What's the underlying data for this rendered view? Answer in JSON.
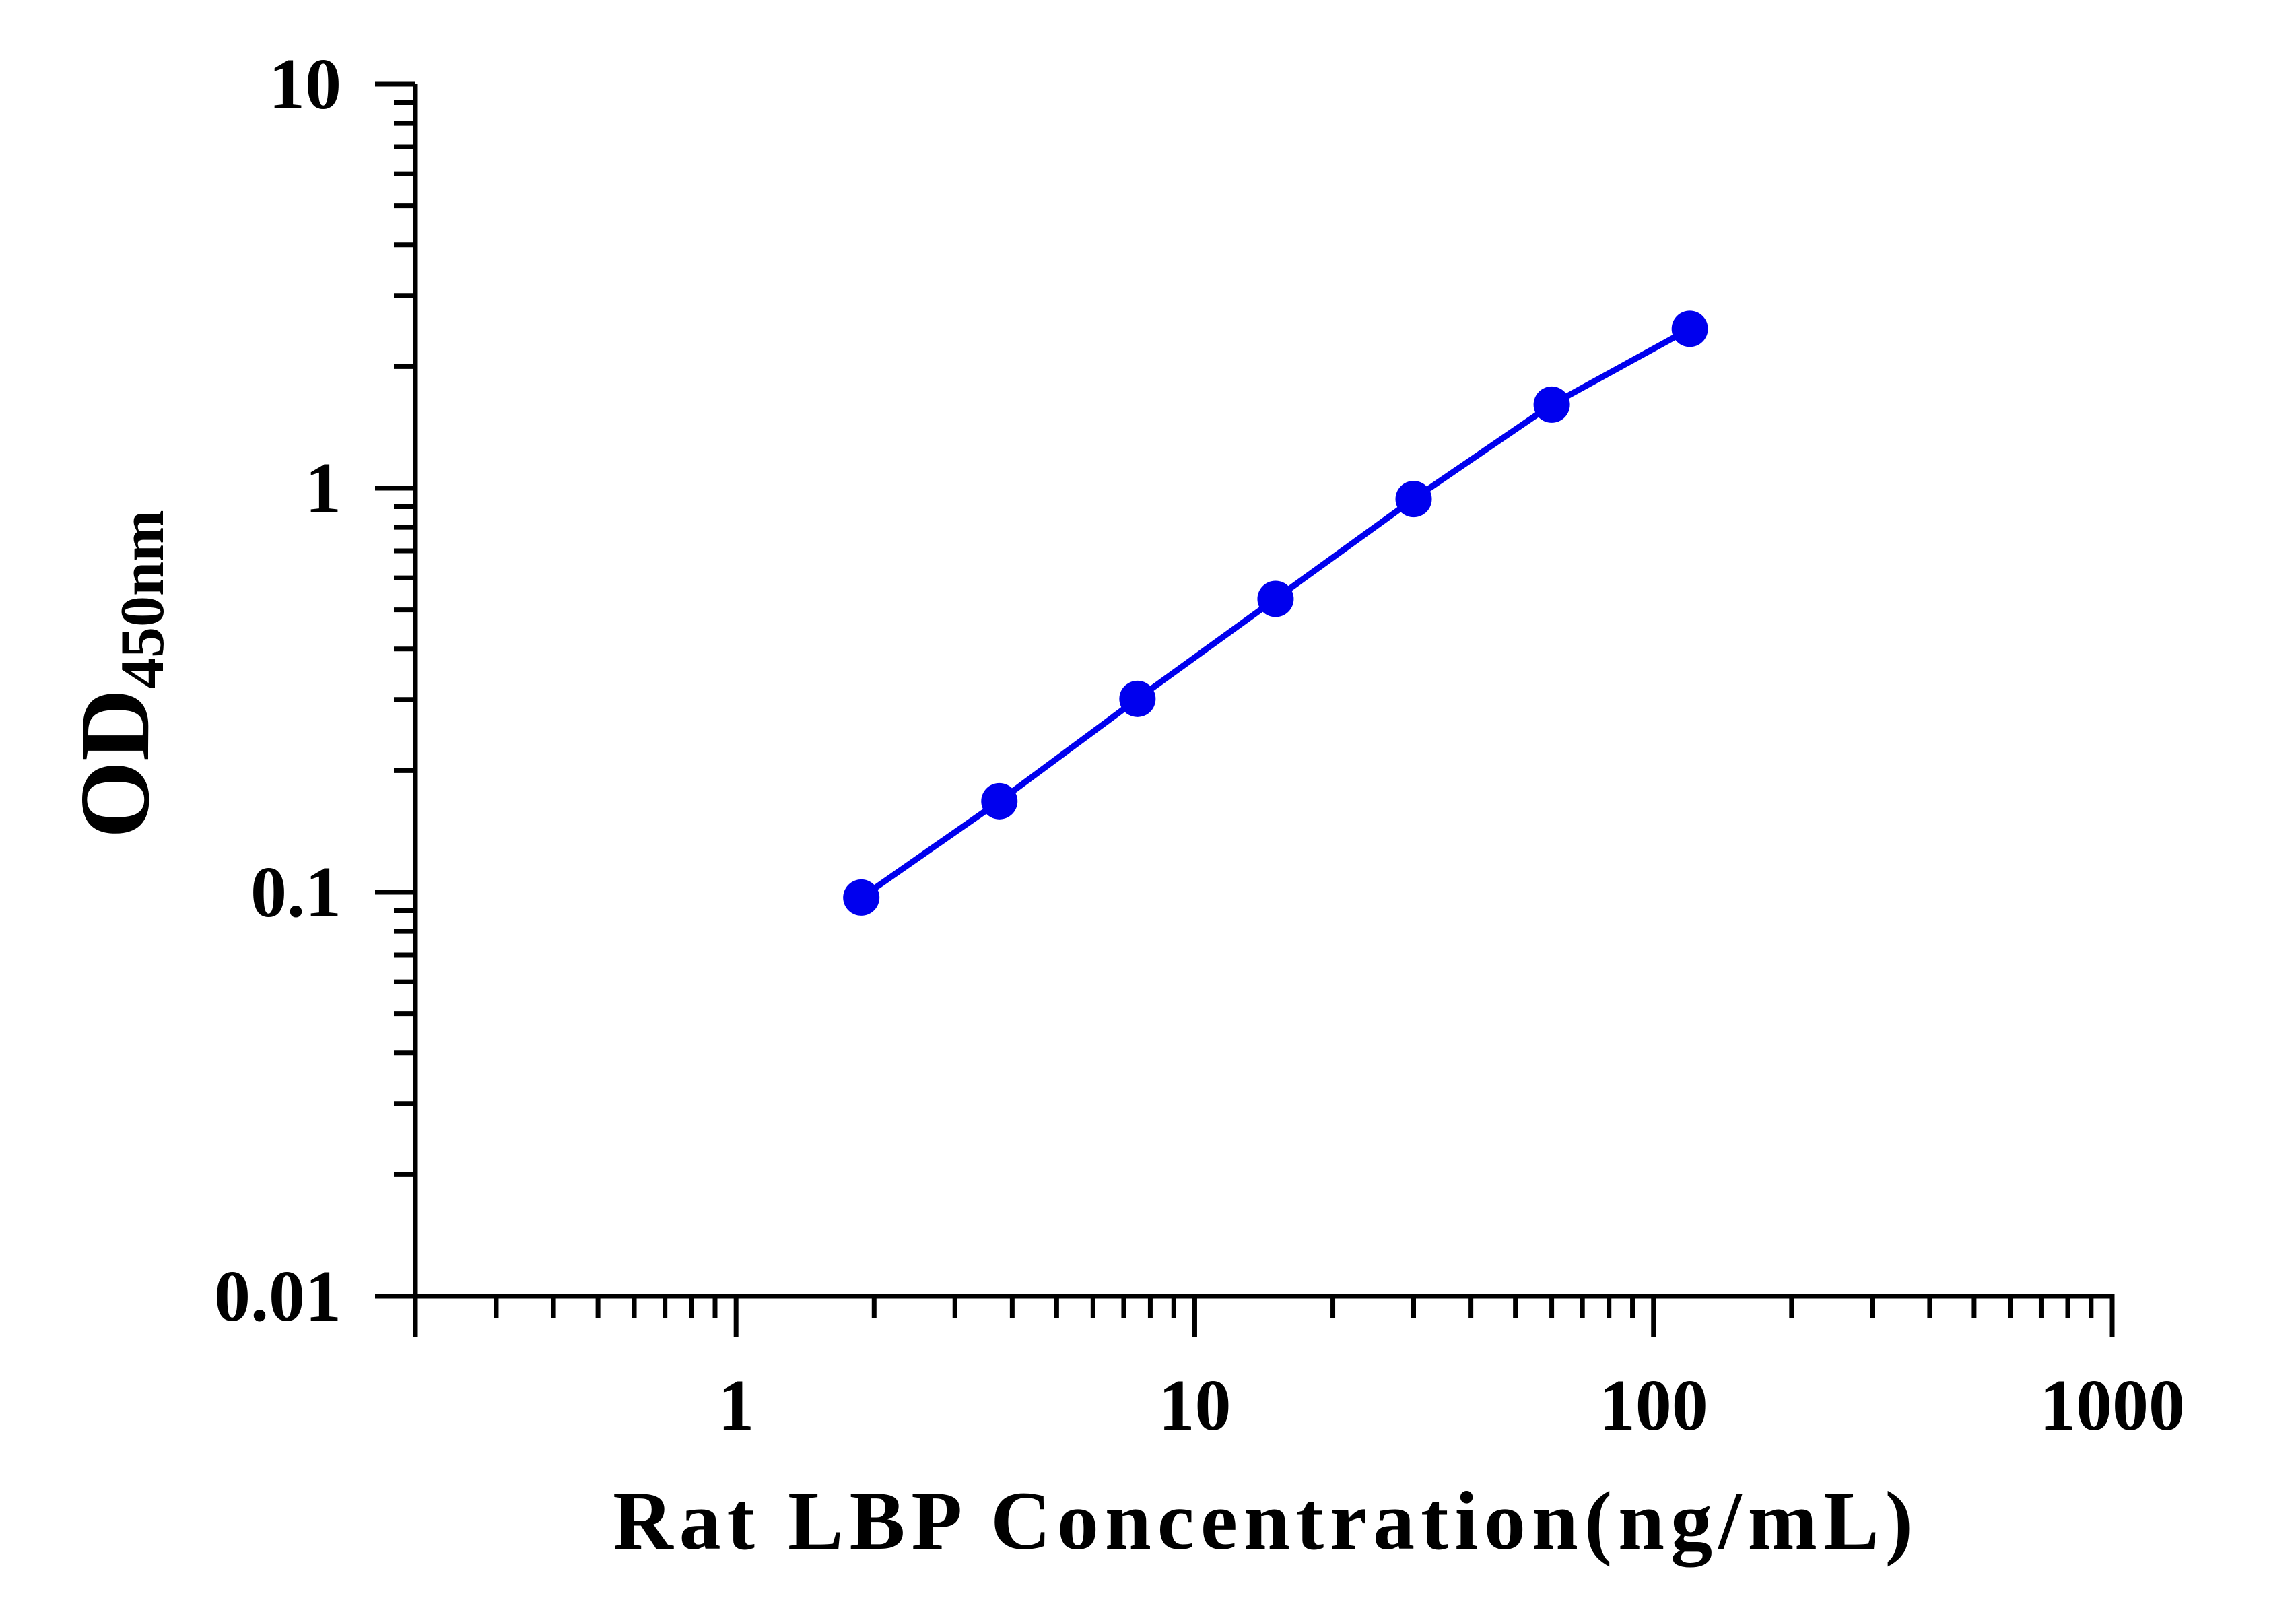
{
  "chart_data": {
    "type": "line",
    "x_scale": "log",
    "y_scale": "log",
    "xlim": [
      0.2,
      1000
    ],
    "ylim": [
      0.01,
      10
    ],
    "xlabel": "Rat LBP Concentration(ng/mL)",
    "ylabel": "OD",
    "ylabel_subscript": "450nm",
    "x_tick_labels": [
      {
        "value": 1,
        "label": "1"
      },
      {
        "value": 10,
        "label": "10"
      },
      {
        "value": 100,
        "label": "100"
      },
      {
        "value": 1000,
        "label": "1000"
      }
    ],
    "y_tick_labels": [
      {
        "value": 0.01,
        "label": "0.01"
      },
      {
        "value": 0.1,
        "label": "0.1"
      },
      {
        "value": 1,
        "label": "1"
      },
      {
        "value": 10,
        "label": "10"
      }
    ],
    "grid": false,
    "legend": "none",
    "series": [
      {
        "color": "#0000ee",
        "x": [
          1.875,
          3.75,
          7.5,
          15,
          30,
          60,
          120
        ],
        "y": [
          0.097,
          0.168,
          0.301,
          0.532,
          0.94,
          1.61,
          2.48
        ]
      }
    ]
  }
}
